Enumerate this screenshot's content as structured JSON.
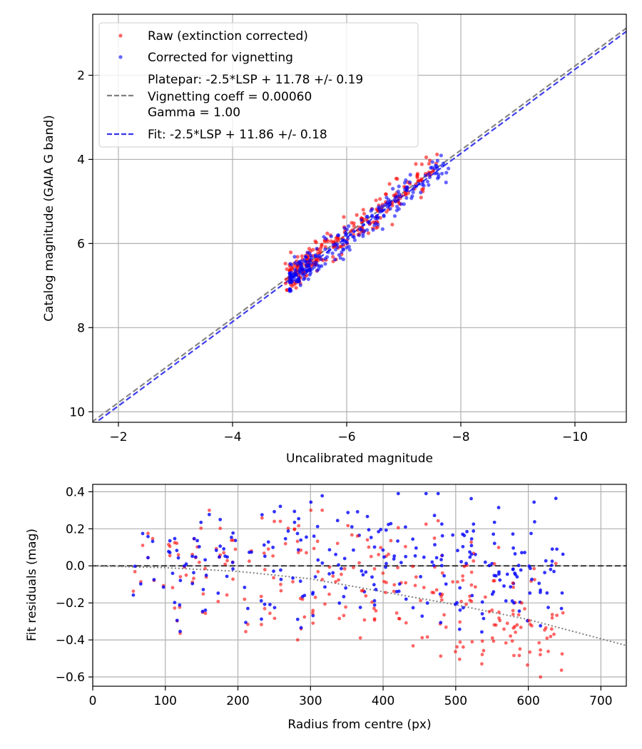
{
  "chart_data": [
    {
      "type": "scatter",
      "xlabel": "Uncalibrated magnitude",
      "ylabel": "Catalog magnitude (GAIA G band)",
      "xlim": [
        -1.55,
        -10.9
      ],
      "ylim": [
        10.25,
        0.55
      ],
      "x_inverted": true,
      "y_inverted": true,
      "xticks": [
        -2,
        -4,
        -6,
        -8,
        -10
      ],
      "xtick_labels": [
        "−2",
        "−4",
        "−6",
        "−8",
        "−10"
      ],
      "yticks": [
        2,
        4,
        6,
        8,
        10
      ],
      "ytick_labels": [
        "2",
        "4",
        "6",
        "8",
        "10"
      ],
      "grid": true,
      "legend_position": "upper-left",
      "series": [
        {
          "name": "Raw (extinction corrected)",
          "kind": "scatter",
          "color": "#ff0000",
          "distribution": {
            "x_range": [
              -4.9,
              -7.6
            ],
            "relation": "y = x + 11.78",
            "scatter_mag": 0.19,
            "count": 260
          }
        },
        {
          "name": "Corrected for vignetting",
          "kind": "scatter",
          "color": "#0000ff",
          "distribution": {
            "x_range": [
              -5.0,
              -7.8
            ],
            "relation": "y = x + 11.86",
            "scatter_mag": 0.18,
            "count": 260
          }
        },
        {
          "name": "Platepar: -2.5*LSP + 11.78 +/- 0.19",
          "name_lines": [
            "Platepar: -2.5*LSP + 11.78 +/- 0.19",
            "Vignetting coeff = 0.00060",
            "Gamma = 1.00"
          ],
          "kind": "line",
          "style": "dashed",
          "color": "#808080",
          "slope": 1,
          "intercept": 11.78
        },
        {
          "name": "Fit: -2.5*LSP + 11.86 +/- 0.18",
          "kind": "line",
          "style": "dashed",
          "color": "#3333ee",
          "slope": 1,
          "intercept": 11.86
        }
      ]
    },
    {
      "type": "scatter",
      "xlabel": "Radius from centre (px)",
      "ylabel": "Fit residuals (mag)",
      "xlim": [
        0,
        735
      ],
      "ylim": [
        -0.65,
        0.44
      ],
      "xticks": [
        0,
        100,
        200,
        300,
        400,
        500,
        600,
        700
      ],
      "xtick_labels": [
        "0",
        "100",
        "200",
        "300",
        "400",
        "500",
        "600",
        "700"
      ],
      "yticks": [
        0.4,
        0.2,
        0.0,
        -0.2,
        -0.4,
        -0.6
      ],
      "ytick_labels": [
        "0.4",
        "0.2",
        "0.0",
        "−0.2",
        "−0.4",
        "−0.6"
      ],
      "grid": true,
      "series": [
        {
          "kind": "scatter",
          "color": "#ff0000",
          "distribution": {
            "x_range": [
              50,
              650
            ],
            "y_range": [
              -0.6,
              0.3
            ],
            "count": 260
          }
        },
        {
          "kind": "scatter",
          "color": "#0000ff",
          "distribution": {
            "x_range": [
              50,
              650
            ],
            "y_range": [
              -0.42,
              0.39
            ],
            "count": 260
          }
        },
        {
          "kind": "line",
          "style": "dashed",
          "color": "#333333",
          "points": [
            [
              0,
              0.0
            ],
            [
              735,
              0.0
            ]
          ]
        },
        {
          "kind": "line",
          "style": "dotted",
          "color": "#808080",
          "points": [
            [
              0,
              0.0
            ],
            [
              100,
              -0.01
            ],
            [
              200,
              -0.03
            ],
            [
              300,
              -0.07
            ],
            [
              400,
              -0.14
            ],
            [
              500,
              -0.21
            ],
            [
              600,
              -0.29
            ],
            [
              735,
              -0.43
            ]
          ]
        }
      ]
    }
  ]
}
